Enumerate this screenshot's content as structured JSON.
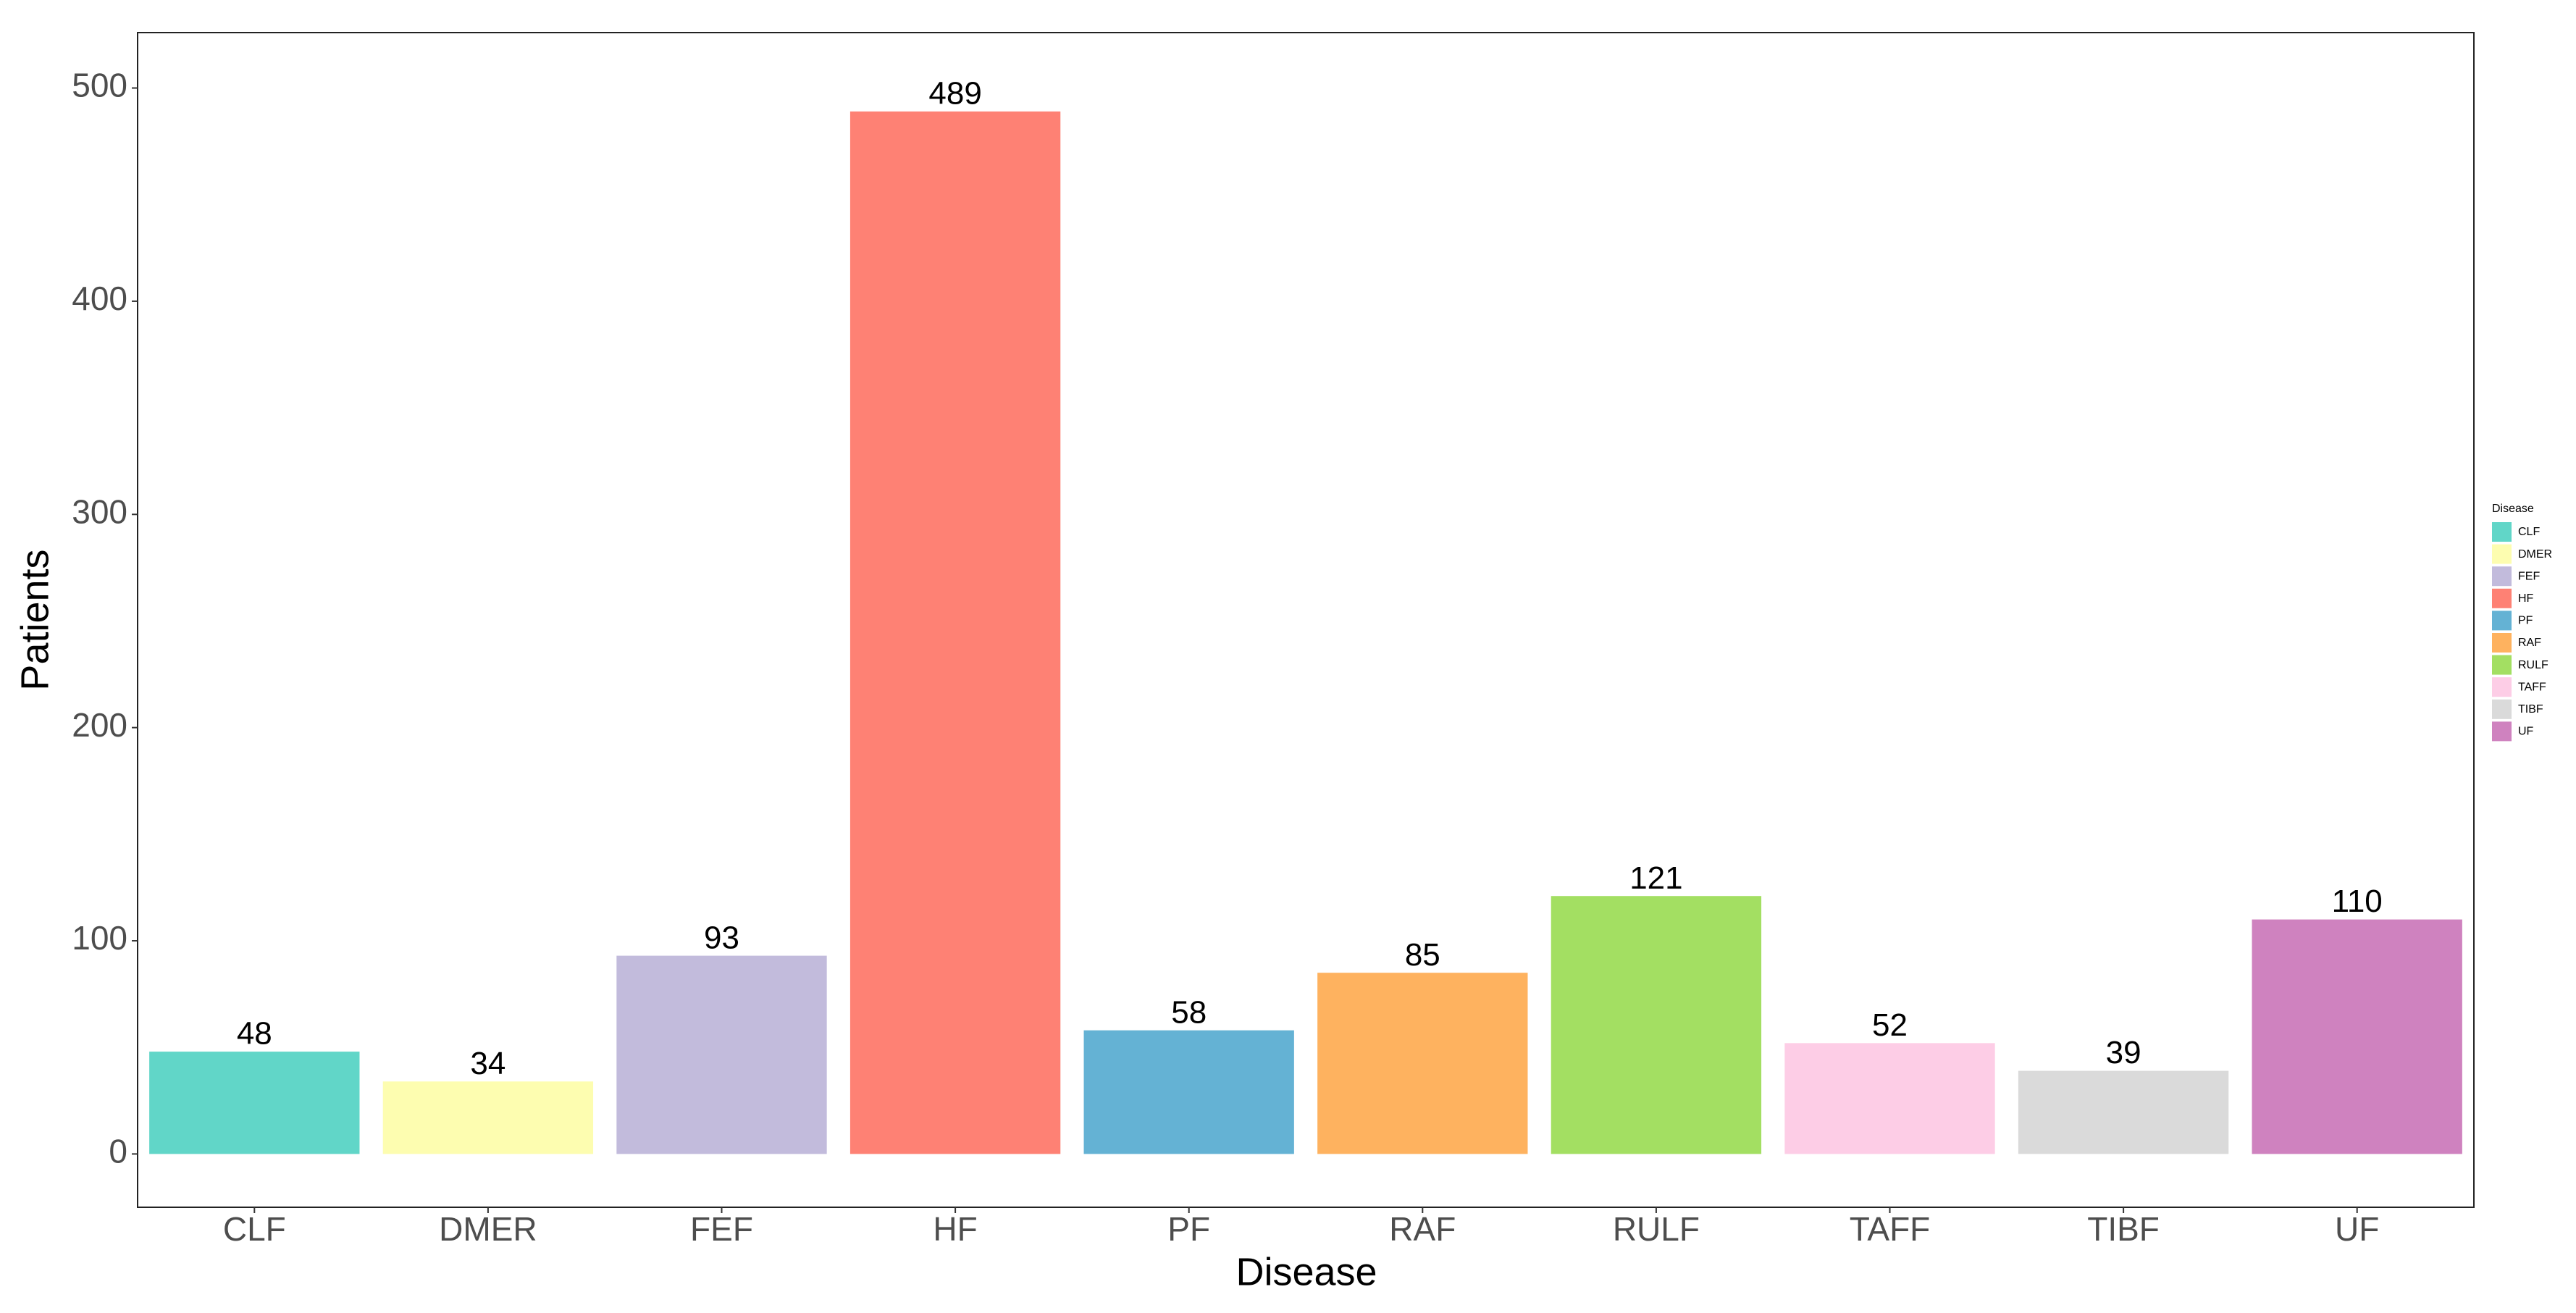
{
  "chart_data": {
    "type": "bar",
    "x_label": "Disease",
    "y_label": "Patients",
    "categories": [
      "CLF",
      "DMER",
      "FEF",
      "HF",
      "PF",
      "RAF",
      "RULF",
      "TAFF",
      "TIBF",
      "UF"
    ],
    "values": [
      48,
      34,
      93,
      489,
      58,
      85,
      121,
      52,
      39,
      110
    ],
    "colors": [
      "#61d6c8",
      "#fdfdb0",
      "#c2bbdc",
      "#fe8174",
      "#64b2d4",
      "#feb25f",
      "#a3df62",
      "#fdcde6",
      "#dadada",
      "#cf82bf"
    ],
    "ylim": [
      -25,
      526
    ],
    "yticks": [
      0,
      100,
      200,
      300,
      400,
      500
    ],
    "grid": false,
    "legend": "right",
    "legend_title": "Disease"
  }
}
